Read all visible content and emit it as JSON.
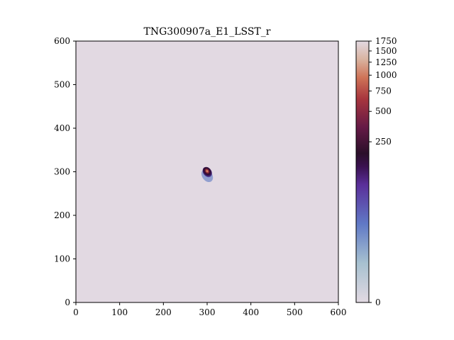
{
  "chart_data": {
    "type": "heatmap",
    "title": "TNG300907a_E1_LSST_r",
    "xlabel": "",
    "ylabel": "",
    "xlim": [
      0,
      600
    ],
    "ylim": [
      0,
      600
    ],
    "x_ticks": [
      0,
      100,
      200,
      300,
      400,
      500,
      600
    ],
    "y_ticks": [
      0,
      100,
      200,
      300,
      400,
      500,
      600
    ],
    "grid": false,
    "background_value": 0,
    "colormap": "twilight-like (light grey at 0, blue, purple, black, red, cream at max)",
    "colorbar": {
      "range": [
        0,
        1750
      ],
      "scale": "nonlinear (power-stretched)",
      "tick_values": [
        0,
        250,
        500,
        750,
        1000,
        1250,
        1500,
        1750
      ],
      "tick_labels": [
        "0",
        "250",
        "500",
        "750",
        "1000",
        "1250",
        "1500",
        "1750"
      ]
    },
    "source": {
      "center": [
        300,
        297
      ],
      "approx_extent_pixels": [
        [
          283,
          279
        ],
        [
          310,
          313
        ]
      ],
      "peak_value_approx": 500,
      "shape": "compact elongated blob, oriented from lower-left to upper-right"
    }
  }
}
